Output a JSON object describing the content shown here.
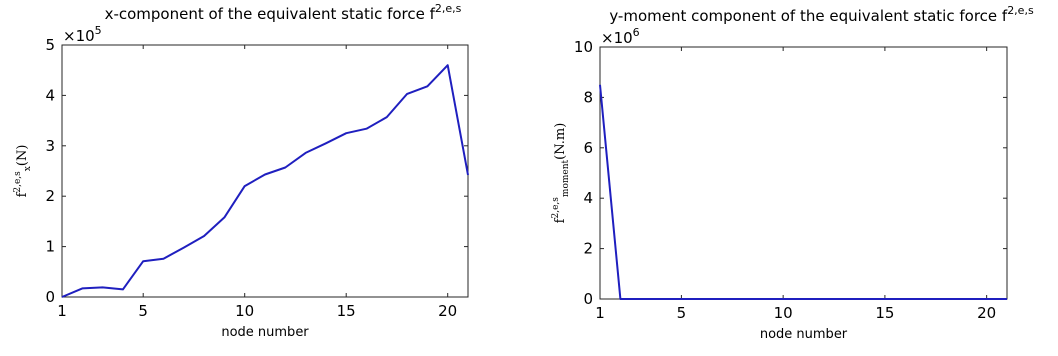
{
  "chart_data": [
    {
      "type": "line",
      "title": "x-component of the equivalent static force f",
      "title_sup": "2,e,s",
      "xlabel": "node number",
      "ylabel_main": "f",
      "ylabel_sup": "2,e,s",
      "ylabel_sub": "x",
      "ylabel_unit": "(N)",
      "y_multiplier_base": "×10",
      "y_multiplier_exp": "5",
      "xlim": [
        1,
        21
      ],
      "ylim": [
        0,
        5
      ],
      "xticks": [
        1,
        5,
        10,
        15,
        20
      ],
      "yticks": [
        0,
        1,
        2,
        3,
        4,
        5
      ],
      "grid": false,
      "line_color": "#1f1fbf",
      "series": [
        {
          "x": [
            1,
            2,
            3,
            4,
            5,
            6,
            7,
            8,
            9,
            10,
            11,
            12,
            13,
            14,
            15,
            16,
            17,
            18,
            19,
            20,
            21
          ],
          "values": [
            0.0,
            0.17,
            0.19,
            0.15,
            0.71,
            0.76,
            0.98,
            1.21,
            1.58,
            2.2,
            2.43,
            2.57,
            2.86,
            3.05,
            3.25,
            3.34,
            3.57,
            4.03,
            4.18,
            4.6,
            2.42
          ]
        }
      ]
    },
    {
      "type": "line",
      "title": "y-moment component of the equivalent static force f",
      "title_sup": "2,e,s",
      "xlabel": "node number",
      "ylabel_main": "f",
      "ylabel_sup": "2,e,s",
      "ylabel_sub": "moment",
      "ylabel_unit": "(N.m)",
      "y_multiplier_base": "×10",
      "y_multiplier_exp": "6",
      "xlim": [
        1,
        21
      ],
      "ylim": [
        0,
        10
      ],
      "xticks": [
        1,
        5,
        10,
        15,
        20
      ],
      "yticks": [
        0,
        2,
        4,
        6,
        8,
        10
      ],
      "grid": false,
      "line_color": "#1f1fbf",
      "series": [
        {
          "x": [
            1,
            2,
            3,
            4,
            5,
            6,
            7,
            8,
            9,
            10,
            11,
            12,
            13,
            14,
            15,
            16,
            17,
            18,
            19,
            20,
            21
          ],
          "values": [
            8.5,
            0,
            0,
            0,
            0,
            0,
            0,
            0,
            0,
            0,
            0,
            0,
            0,
            0,
            0,
            0,
            0,
            0,
            0,
            0,
            0
          ]
        }
      ]
    }
  ]
}
